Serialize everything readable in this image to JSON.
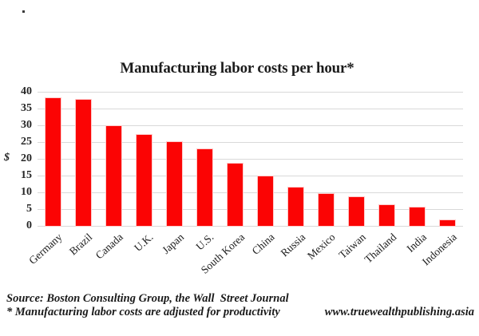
{
  "chart_data": {
    "type": "bar",
    "title": "Manufacturing labor costs per hour*",
    "xlabel": "",
    "ylabel": "$",
    "categories": [
      "Germany",
      "Brazil",
      "Canada",
      "U.K.",
      "Japan",
      "U.S.",
      "South Korea",
      "China",
      "Russia",
      "Mexico",
      "Taiwan",
      "Thailand",
      "India",
      "Indonesia"
    ],
    "values": [
      38,
      37.7,
      29.8,
      27.2,
      24.9,
      22.8,
      18.5,
      14.7,
      11.5,
      9.5,
      8.6,
      6.3,
      5.5,
      1.7
    ],
    "ylim": [
      0,
      40
    ],
    "ytick_step": 5,
    "grid": true,
    "legend": false,
    "bar_color": "#fb0404",
    "gridline_color": "#d9d9d9"
  },
  "footer": {
    "source_line": "Source: Boston Consulting Group, the Wall  Street Journal",
    "note_line": "* Manufacturing labor costs are adjusted for productivity",
    "website": "www.truewealthpublishing.asia"
  }
}
